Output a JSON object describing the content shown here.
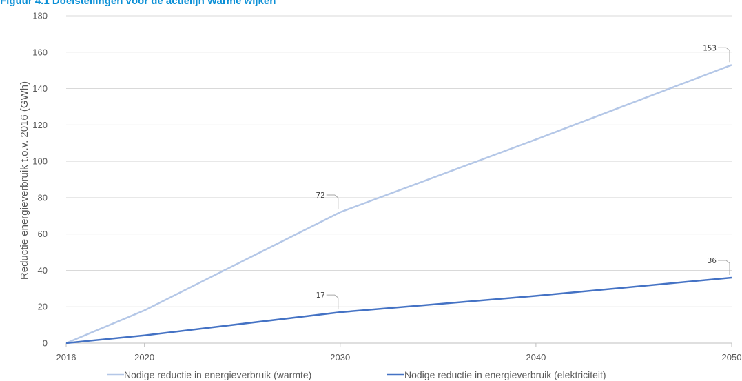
{
  "figure_title": "Figuur 4.1     Doelstellingen voor de actielijn Warme wijken",
  "colors": {
    "warmte": "#b4c7e7",
    "elektriciteit": "#4472c4",
    "grid": "#d9d9d9",
    "axis": "#bfbfbf"
  },
  "chart_data": {
    "type": "line",
    "title": "",
    "xlabel": "",
    "ylabel": "Reductie energieverbruik t.o.v. 2016 (GWh)",
    "xlim": [
      2016,
      2050
    ],
    "ylim": [
      0,
      180
    ],
    "x_ticks": [
      2016,
      2020,
      2030,
      2040,
      2050
    ],
    "y_ticks": [
      0,
      20,
      40,
      60,
      80,
      100,
      120,
      140,
      160,
      180
    ],
    "grid": true,
    "legend": "bottom",
    "series": [
      {
        "name": "Nodige reductie in energieverbruik (warmte)",
        "color": "#b4c7e7",
        "points": [
          [
            2016,
            0
          ],
          [
            2020,
            18
          ],
          [
            2030,
            72
          ],
          [
            2040,
            112
          ],
          [
            2050,
            153
          ]
        ],
        "data_labels": [
          {
            "x": 2030,
            "y": 72,
            "text": "72"
          },
          {
            "x": 2050,
            "y": 153,
            "text": "153"
          }
        ]
      },
      {
        "name": "Nodige reductie in energieverbruik (elektriciteit)",
        "color": "#4472c4",
        "points": [
          [
            2016,
            0
          ],
          [
            2020,
            4.3
          ],
          [
            2030,
            17
          ],
          [
            2040,
            26
          ],
          [
            2050,
            36
          ]
        ],
        "data_labels": [
          {
            "x": 2030,
            "y": 17,
            "text": "17"
          },
          {
            "x": 2050,
            "y": 36,
            "text": "36"
          }
        ]
      }
    ]
  }
}
